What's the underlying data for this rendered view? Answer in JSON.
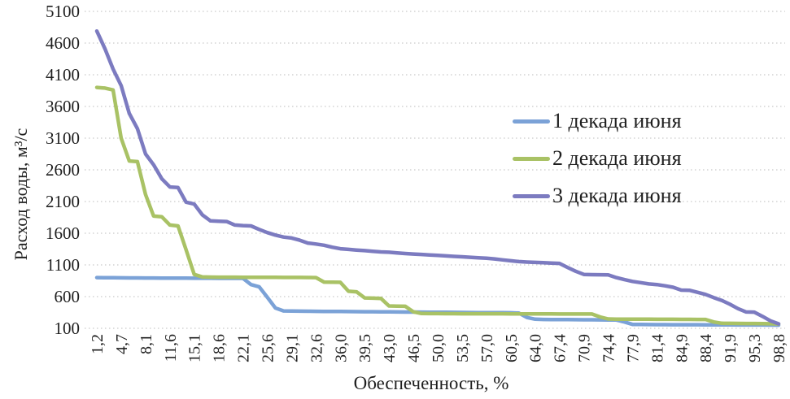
{
  "chart_data": {
    "type": "line",
    "title": "",
    "xlabel": "Обеспеченность, %",
    "ylabel": "Расход воды, м³/с",
    "ylim": [
      100,
      5100
    ],
    "y_ticks": [
      5100,
      4600,
      4100,
      3600,
      3100,
      2600,
      2100,
      1600,
      1100,
      600,
      100
    ],
    "x_tick_labels": [
      "1,2",
      "4,7",
      "8,1",
      "11,6",
      "15,1",
      "18,6",
      "22,1",
      "25,6",
      "29,1",
      "32,6",
      "36,0",
      "39,5",
      "43,0",
      "46,5",
      "50,0",
      "53,5",
      "57,0",
      "60,5",
      "64,0",
      "67,4",
      "70,9",
      "74,4",
      "77,9",
      "81,4",
      "84,9",
      "88,4",
      "91,9",
      "95,3",
      "98,8"
    ],
    "x_tick_every": 3,
    "n_points": 85,
    "grid": "horizontal-dotted",
    "grid_color": "#bdbdbd",
    "legend_position": "inside-right-upper",
    "series": [
      {
        "name": "1 декада июня",
        "color": "#7BA2D7",
        "values": [
          900,
          898,
          897,
          896,
          895,
          895,
          894,
          893,
          892,
          892,
          891,
          891,
          890,
          890,
          890,
          889,
          889,
          888,
          888,
          790,
          755,
          590,
          420,
          375,
          372,
          370,
          369,
          368,
          367,
          366,
          365,
          364,
          363,
          362,
          361,
          360,
          359,
          358,
          357,
          356,
          355,
          354,
          353,
          352,
          351,
          350,
          349,
          348,
          347,
          347,
          346,
          345,
          340,
          270,
          243,
          240,
          239,
          238,
          237,
          236,
          235,
          234,
          233,
          232,
          231,
          200,
          162,
          160,
          159,
          158,
          158,
          157,
          157,
          156,
          156,
          155,
          155,
          154,
          154,
          153,
          153,
          152,
          152,
          151,
          150
        ]
      },
      {
        "name": "2 декада июня",
        "color": "#A9C265",
        "values": [
          3900,
          3890,
          3860,
          3100,
          2740,
          2730,
          2210,
          1870,
          1860,
          1730,
          1715,
          1340,
          950,
          910,
          908,
          907,
          906,
          906,
          905,
          905,
          905,
          904,
          904,
          903,
          903,
          902,
          901,
          900,
          830,
          828,
          825,
          685,
          675,
          580,
          575,
          572,
          452,
          450,
          448,
          360,
          333,
          332,
          332,
          331,
          331,
          330,
          330,
          330,
          329,
          329,
          329,
          328,
          328,
          328,
          327,
          327,
          327,
          326,
          326,
          326,
          325,
          325,
          280,
          248,
          245,
          244,
          244,
          243,
          243,
          242,
          242,
          242,
          241,
          241,
          240,
          240,
          200,
          180,
          178,
          177,
          176,
          175,
          174,
          172,
          168
        ]
      },
      {
        "name": "3 декада июня",
        "color": "#7C7BC0",
        "values": [
          4790,
          4510,
          4190,
          3930,
          3490,
          3250,
          2850,
          2680,
          2460,
          2330,
          2320,
          2090,
          2060,
          1890,
          1795,
          1790,
          1785,
          1730,
          1720,
          1715,
          1660,
          1610,
          1570,
          1540,
          1525,
          1490,
          1445,
          1430,
          1410,
          1380,
          1355,
          1345,
          1335,
          1325,
          1315,
          1305,
          1300,
          1290,
          1280,
          1272,
          1265,
          1258,
          1250,
          1242,
          1235,
          1228,
          1220,
          1213,
          1205,
          1195,
          1180,
          1165,
          1152,
          1145,
          1140,
          1135,
          1130,
          1125,
          1060,
          1000,
          950,
          946,
          945,
          944,
          900,
          868,
          840,
          820,
          800,
          790,
          770,
          748,
          702,
          700,
          668,
          635,
          585,
          540,
          480,
          410,
          358,
          355,
          290,
          218,
          170
        ]
      }
    ]
  }
}
